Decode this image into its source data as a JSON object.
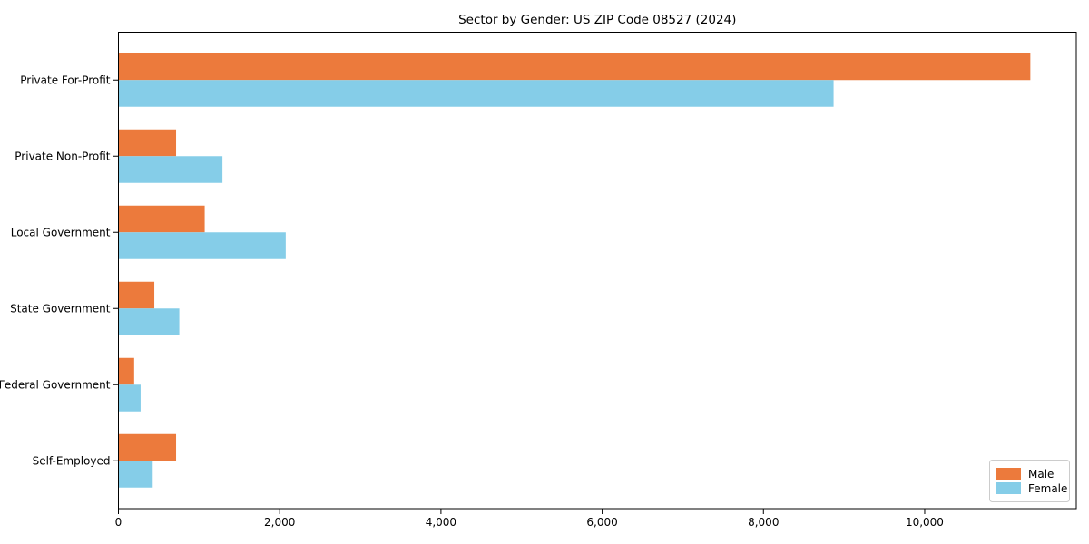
{
  "chart_data": {
    "type": "bar",
    "orientation": "horizontal",
    "title": "Sector by Gender: US ZIP Code 08527 (2024)",
    "xlabel": "",
    "ylabel": "",
    "categories": [
      "Private For-Profit",
      "Private Non-Profit",
      "Local Government",
      "State Government",
      "Federal Government",
      "Self-Employed"
    ],
    "series": [
      {
        "name": "Male",
        "color": "#ec7a3c",
        "values": [
          11310,
          715,
          1070,
          445,
          195,
          715
        ]
      },
      {
        "name": "Female",
        "color": "#85cde8",
        "values": [
          8870,
          1290,
          2075,
          755,
          275,
          425
        ]
      }
    ],
    "xlim": [
      0,
      11880
    ],
    "xticks": [
      0,
      2000,
      4000,
      6000,
      8000,
      10000
    ],
    "xtick_labels": [
      "0",
      "2,000",
      "4,000",
      "6,000",
      "8,000",
      "10,000"
    ],
    "grid": false,
    "legend": {
      "position": "lower right",
      "entries": [
        "Male",
        "Female"
      ]
    },
    "frame_color": "#000000",
    "legend_border_color": "#cccccc",
    "background_color": "#ffffff"
  }
}
